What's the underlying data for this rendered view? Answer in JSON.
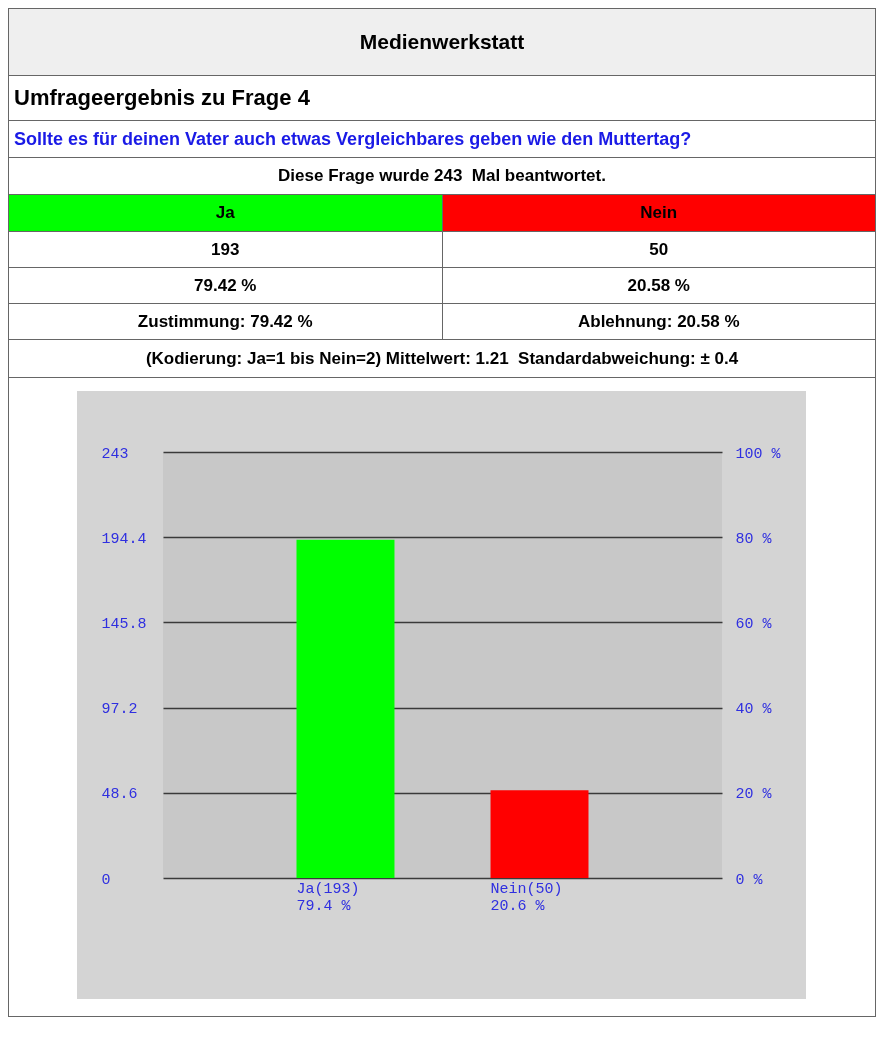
{
  "chart_data": [
    {
      "type": "other",
      "title": "Medienwerkstatt",
      "subtitle": "Umfrageergebnis zu Frage 4",
      "categories": [
        "Ja",
        "Nein"
      ],
      "colors": [
        "#00ff00",
        "#ff0000"
      ],
      "annotations": [
        "Sollte es für deinen Vater auch etwas Vergleichbares geben wie den Muttertag?",
        "Diese Frage wurde 243  Mal beantwortet.",
        "193",
        "50",
        "79.42 %",
        "20.58 %",
        "Zustimmung: 79.42 %",
        "Ablehnung: 20.58 %",
        "(Kodierung: Ja=1 bis Nein=2) Mittelwert: 1.21  Standardabweichung: ± 0.4"
      ]
    },
    {
      "type": "bar",
      "categories": [
        "Ja(193)\n79.4 %",
        "Nein(50)\n20.6 %"
      ],
      "values": [
        193,
        50
      ],
      "colors": [
        "#00ff00",
        "#ff0000"
      ],
      "ylim": [
        0,
        243
      ],
      "yticks": [
        0,
        48.6,
        97.2,
        145.8,
        194.4,
        243
      ],
      "y2lim": [
        0,
        100
      ],
      "y2ticks": [
        {
          "value": 0,
          "label": "0 %"
        },
        {
          "value": 20,
          "label": "20 %"
        },
        {
          "value": 40,
          "label": "40 %"
        },
        {
          "value": 60,
          "label": "60 %"
        },
        {
          "value": 80,
          "label": "80 %"
        },
        {
          "value": 100,
          "label": "100 %"
        }
      ],
      "grid": "y"
    }
  ]
}
